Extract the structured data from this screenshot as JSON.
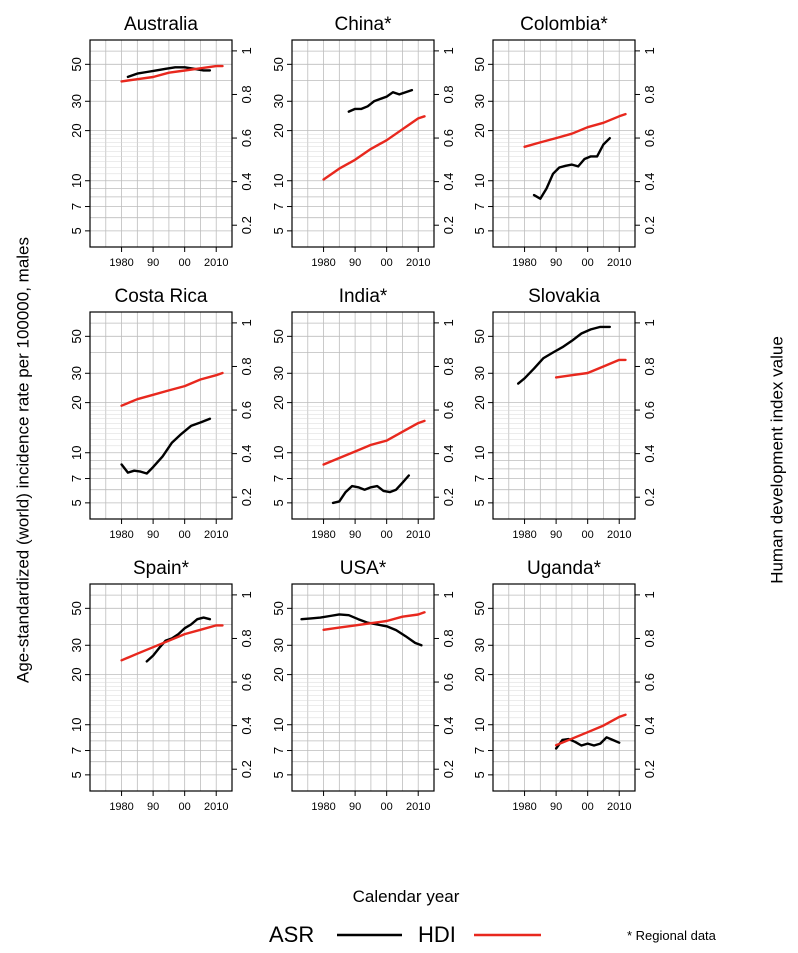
{
  "figure": {
    "y_axis_label": "Age-standardized (world) incidence rate per 100000, males",
    "y2_axis_label": "Human development index value",
    "x_axis_label": "Calendar year",
    "legend": {
      "asr": "ASR",
      "hdi": "HDI",
      "asr_color": "#000000",
      "hdi_color": "#e8281e"
    },
    "note": "* Regional data"
  },
  "chart_data": [
    {
      "type": "line",
      "title": "Australia",
      "xlim": [
        1970,
        2015
      ],
      "ylim": [
        4,
        70
      ],
      "y_scale": "log",
      "y2lim": [
        0.1,
        1.05
      ],
      "grid": true,
      "x_ticks": [
        "1980",
        "90",
        "00",
        "2010"
      ],
      "y_ticks": [
        "5",
        "7",
        "10",
        "20",
        "30",
        "50"
      ],
      "y2_ticks": [
        "0.2",
        "0.4",
        "0.6",
        "0.8",
        "1"
      ],
      "series": [
        {
          "name": "ASR",
          "axis": "left",
          "x": [
            1982,
            1985,
            1988,
            1991,
            1994,
            1997,
            2000,
            2003,
            2006,
            2008
          ],
          "y": [
            42,
            44,
            45,
            46,
            47,
            48,
            48,
            47,
            46,
            46
          ]
        },
        {
          "name": "HDI",
          "axis": "right",
          "x": [
            1980,
            1985,
            1990,
            1995,
            2000,
            2005,
            2010,
            2012
          ],
          "y": [
            0.86,
            0.87,
            0.88,
            0.9,
            0.91,
            0.92,
            0.93,
            0.93
          ]
        }
      ]
    },
    {
      "type": "line",
      "title": "China*",
      "xlim": [
        1970,
        2015
      ],
      "ylim": [
        4,
        70
      ],
      "y_scale": "log",
      "y2lim": [
        0.1,
        1.05
      ],
      "grid": true,
      "x_ticks": [
        "1980",
        "90",
        "00",
        "2010"
      ],
      "y_ticks": [
        "5",
        "7",
        "10",
        "20",
        "30",
        "50"
      ],
      "y2_ticks": [
        "0.2",
        "0.4",
        "0.6",
        "0.8",
        "1"
      ],
      "series": [
        {
          "name": "ASR",
          "axis": "left",
          "x": [
            1988,
            1990,
            1992,
            1994,
            1996,
            1998,
            2000,
            2002,
            2004,
            2006,
            2008
          ],
          "y": [
            26,
            27,
            27,
            28,
            30,
            31,
            32,
            34,
            33,
            34,
            35
          ]
        },
        {
          "name": "HDI",
          "axis": "right",
          "x": [
            1980,
            1985,
            1990,
            1995,
            2000,
            2005,
            2010,
            2012
          ],
          "y": [
            0.41,
            0.46,
            0.5,
            0.55,
            0.59,
            0.64,
            0.69,
            0.7
          ]
        }
      ]
    },
    {
      "type": "line",
      "title": "Colombia*",
      "xlim": [
        1970,
        2015
      ],
      "ylim": [
        4,
        70
      ],
      "y_scale": "log",
      "y2lim": [
        0.1,
        1.05
      ],
      "grid": true,
      "x_ticks": [
        "1980",
        "90",
        "00",
        "2010"
      ],
      "y_ticks": [
        "5",
        "7",
        "10",
        "20",
        "30",
        "50"
      ],
      "y2_ticks": [
        "0.2",
        "0.4",
        "0.6",
        "0.8",
        "1"
      ],
      "series": [
        {
          "name": "ASR",
          "axis": "left",
          "x": [
            1983,
            1985,
            1987,
            1989,
            1991,
            1993,
            1995,
            1997,
            1999,
            2001,
            2003,
            2005,
            2007
          ],
          "y": [
            8.2,
            7.8,
            9.0,
            11.0,
            12.0,
            12.3,
            12.5,
            12.2,
            13.5,
            14.0,
            14.0,
            16.5,
            18.0
          ]
        },
        {
          "name": "HDI",
          "axis": "right",
          "x": [
            1980,
            1985,
            1990,
            1995,
            2000,
            2005,
            2010,
            2012
          ],
          "y": [
            0.56,
            0.58,
            0.6,
            0.62,
            0.65,
            0.67,
            0.7,
            0.71
          ]
        }
      ]
    },
    {
      "type": "line",
      "title": "Costa Rica",
      "xlim": [
        1970,
        2015
      ],
      "ylim": [
        4,
        70
      ],
      "y_scale": "log",
      "y2lim": [
        0.1,
        1.05
      ],
      "grid": true,
      "x_ticks": [
        "1980",
        "90",
        "00",
        "2010"
      ],
      "y_ticks": [
        "5",
        "7",
        "10",
        "20",
        "30",
        "50"
      ],
      "y2_ticks": [
        "0.2",
        "0.4",
        "0.6",
        "0.8",
        "1"
      ],
      "series": [
        {
          "name": "ASR",
          "axis": "left",
          "x": [
            1980,
            1982,
            1984,
            1986,
            1988,
            1990,
            1993,
            1996,
            1999,
            2002,
            2005,
            2008
          ],
          "y": [
            8.5,
            7.6,
            7.8,
            7.7,
            7.5,
            8.2,
            9.5,
            11.5,
            13.0,
            14.5,
            15.2,
            16.0
          ]
        },
        {
          "name": "HDI",
          "axis": "right",
          "x": [
            1980,
            1985,
            1990,
            1995,
            2000,
            2005,
            2010,
            2012
          ],
          "y": [
            0.62,
            0.65,
            0.67,
            0.69,
            0.71,
            0.74,
            0.76,
            0.77
          ]
        }
      ]
    },
    {
      "type": "line",
      "title": "India*",
      "xlim": [
        1970,
        2015
      ],
      "ylim": [
        4,
        70
      ],
      "y_scale": "log",
      "y2lim": [
        0.1,
        1.05
      ],
      "grid": true,
      "x_ticks": [
        "1980",
        "90",
        "00",
        "2010"
      ],
      "y_ticks": [
        "5",
        "7",
        "10",
        "20",
        "30",
        "50"
      ],
      "y2_ticks": [
        "0.2",
        "0.4",
        "0.6",
        "0.8",
        "1"
      ],
      "series": [
        {
          "name": "ASR",
          "axis": "left",
          "x": [
            1983,
            1985,
            1987,
            1989,
            1991,
            1993,
            1995,
            1997,
            1999,
            2001,
            2003,
            2005,
            2007
          ],
          "y": [
            5.0,
            5.1,
            5.8,
            6.3,
            6.2,
            6.0,
            6.2,
            6.3,
            5.9,
            5.8,
            6.0,
            6.6,
            7.3
          ]
        },
        {
          "name": "HDI",
          "axis": "right",
          "x": [
            1980,
            1985,
            1990,
            1995,
            2000,
            2005,
            2010,
            2012
          ],
          "y": [
            0.35,
            0.38,
            0.41,
            0.44,
            0.46,
            0.5,
            0.54,
            0.55
          ]
        }
      ]
    },
    {
      "type": "line",
      "title": "Slovakia",
      "xlim": [
        1970,
        2015
      ],
      "ylim": [
        4,
        70
      ],
      "y_scale": "log",
      "y2lim": [
        0.1,
        1.05
      ],
      "grid": true,
      "x_ticks": [
        "1980",
        "90",
        "00",
        "2010"
      ],
      "y_ticks": [
        "5",
        "7",
        "10",
        "20",
        "30",
        "50"
      ],
      "y2_ticks": [
        "0.2",
        "0.4",
        "0.6",
        "0.8",
        "1"
      ],
      "series": [
        {
          "name": "ASR",
          "axis": "left",
          "x": [
            1978,
            1980,
            1983,
            1986,
            1989,
            1992,
            1995,
            1998,
            2001,
            2004,
            2007
          ],
          "y": [
            26,
            28,
            32,
            37,
            40,
            43,
            47,
            52,
            55,
            57,
            57
          ]
        },
        {
          "name": "HDI",
          "axis": "right",
          "x": [
            1990,
            1995,
            2000,
            2005,
            2010,
            2012
          ],
          "y": [
            0.75,
            0.76,
            0.77,
            0.8,
            0.83,
            0.83
          ]
        }
      ]
    },
    {
      "type": "line",
      "title": "Spain*",
      "xlim": [
        1970,
        2015
      ],
      "ylim": [
        4,
        70
      ],
      "y_scale": "log",
      "y2lim": [
        0.1,
        1.05
      ],
      "grid": true,
      "x_ticks": [
        "1980",
        "90",
        "00",
        "2010"
      ],
      "y_ticks": [
        "5",
        "7",
        "10",
        "20",
        "30",
        "50"
      ],
      "y2_ticks": [
        "0.2",
        "0.4",
        "0.6",
        "0.8",
        "1"
      ],
      "series": [
        {
          "name": "ASR",
          "axis": "left",
          "x": [
            1988,
            1990,
            1992,
            1994,
            1996,
            1998,
            2000,
            2002,
            2004,
            2006,
            2008
          ],
          "y": [
            24,
            26,
            29,
            32,
            33,
            35,
            38,
            40,
            43,
            44,
            43
          ]
        },
        {
          "name": "HDI",
          "axis": "right",
          "x": [
            1980,
            1985,
            1990,
            1995,
            2000,
            2005,
            2010,
            2012
          ],
          "y": [
            0.7,
            0.73,
            0.76,
            0.79,
            0.82,
            0.84,
            0.86,
            0.86
          ]
        }
      ]
    },
    {
      "type": "line",
      "title": "USA*",
      "xlim": [
        1970,
        2015
      ],
      "ylim": [
        4,
        70
      ],
      "y_scale": "log",
      "y2lim": [
        0.1,
        1.05
      ],
      "grid": true,
      "x_ticks": [
        "1980",
        "90",
        "00",
        "2010"
      ],
      "y_ticks": [
        "5",
        "7",
        "10",
        "20",
        "30",
        "50"
      ],
      "y2_ticks": [
        "0.2",
        "0.4",
        "0.6",
        "0.8",
        "1"
      ],
      "series": [
        {
          "name": "ASR",
          "axis": "left",
          "x": [
            1973,
            1976,
            1979,
            1982,
            1985,
            1988,
            1991,
            1994,
            1997,
            2000,
            2003,
            2006,
            2009,
            2011
          ],
          "y": [
            43,
            43.5,
            44,
            45,
            46,
            45.5,
            43,
            41,
            40,
            39,
            37,
            34,
            31,
            30
          ]
        },
        {
          "name": "HDI",
          "axis": "right",
          "x": [
            1980,
            1985,
            1990,
            1995,
            2000,
            2005,
            2010,
            2012
          ],
          "y": [
            0.84,
            0.85,
            0.86,
            0.87,
            0.88,
            0.9,
            0.91,
            0.92
          ]
        }
      ]
    },
    {
      "type": "line",
      "title": "Uganda*",
      "xlim": [
        1970,
        2015
      ],
      "ylim": [
        4,
        70
      ],
      "y_scale": "log",
      "y2lim": [
        0.1,
        1.05
      ],
      "grid": true,
      "x_ticks": [
        "1980",
        "90",
        "00",
        "2010"
      ],
      "y_ticks": [
        "5",
        "7",
        "10",
        "20",
        "30",
        "50"
      ],
      "y2_ticks": [
        "0.2",
        "0.4",
        "0.6",
        "0.8",
        "1"
      ],
      "series": [
        {
          "name": "ASR",
          "axis": "left",
          "x": [
            1990,
            1992,
            1994,
            1996,
            1998,
            2000,
            2002,
            2004,
            2006,
            2008,
            2010
          ],
          "y": [
            7.2,
            8.1,
            8.2,
            7.9,
            7.5,
            7.7,
            7.5,
            7.7,
            8.4,
            8.1,
            7.8
          ]
        },
        {
          "name": "HDI",
          "axis": "right",
          "x": [
            1990,
            1995,
            2000,
            2005,
            2010,
            2012
          ],
          "y": [
            0.31,
            0.34,
            0.37,
            0.4,
            0.44,
            0.45
          ]
        }
      ]
    }
  ]
}
